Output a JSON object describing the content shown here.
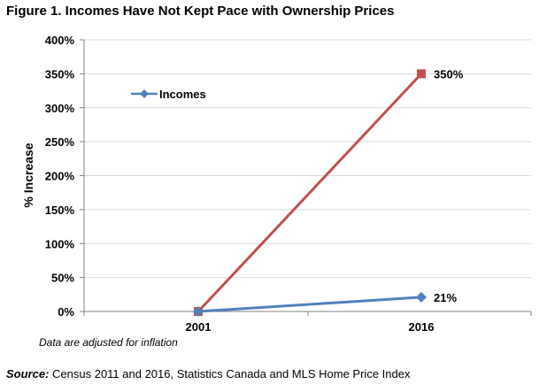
{
  "title": "Figure 1. Incomes Have Not Kept Pace with Ownership Prices",
  "note": "Data are adjusted for inflation",
  "source": {
    "label": "Source:",
    "text": " Census 2011 and 2016, Statistics Canada and MLS Home Price Index"
  },
  "chart_data": {
    "type": "line",
    "title": "Figure 1. Incomes Have Not Kept Pace with Ownership Prices",
    "xlabel": "",
    "ylabel": "% Increase",
    "categories": [
      "2001",
      "2016"
    ],
    "ylim": [
      0,
      400
    ],
    "yticks": [
      0,
      50,
      100,
      150,
      200,
      250,
      300,
      350,
      400
    ],
    "ytick_labels": [
      "0%",
      "50%",
      "100%",
      "150%",
      "200%",
      "250%",
      "300%",
      "350%",
      "400%"
    ],
    "grid": true,
    "legend": {
      "placement": "top-left",
      "entries": [
        "Incomes"
      ]
    },
    "series": [
      {
        "name": "Incomes",
        "values": [
          0,
          21
        ],
        "labels": [
          "",
          "21%"
        ],
        "color": "#4F81BD",
        "marker": "diamond"
      },
      {
        "name": "",
        "values": [
          0,
          350
        ],
        "labels": [
          "",
          "350%"
        ],
        "color": "#C0504D",
        "marker": "square"
      }
    ]
  }
}
